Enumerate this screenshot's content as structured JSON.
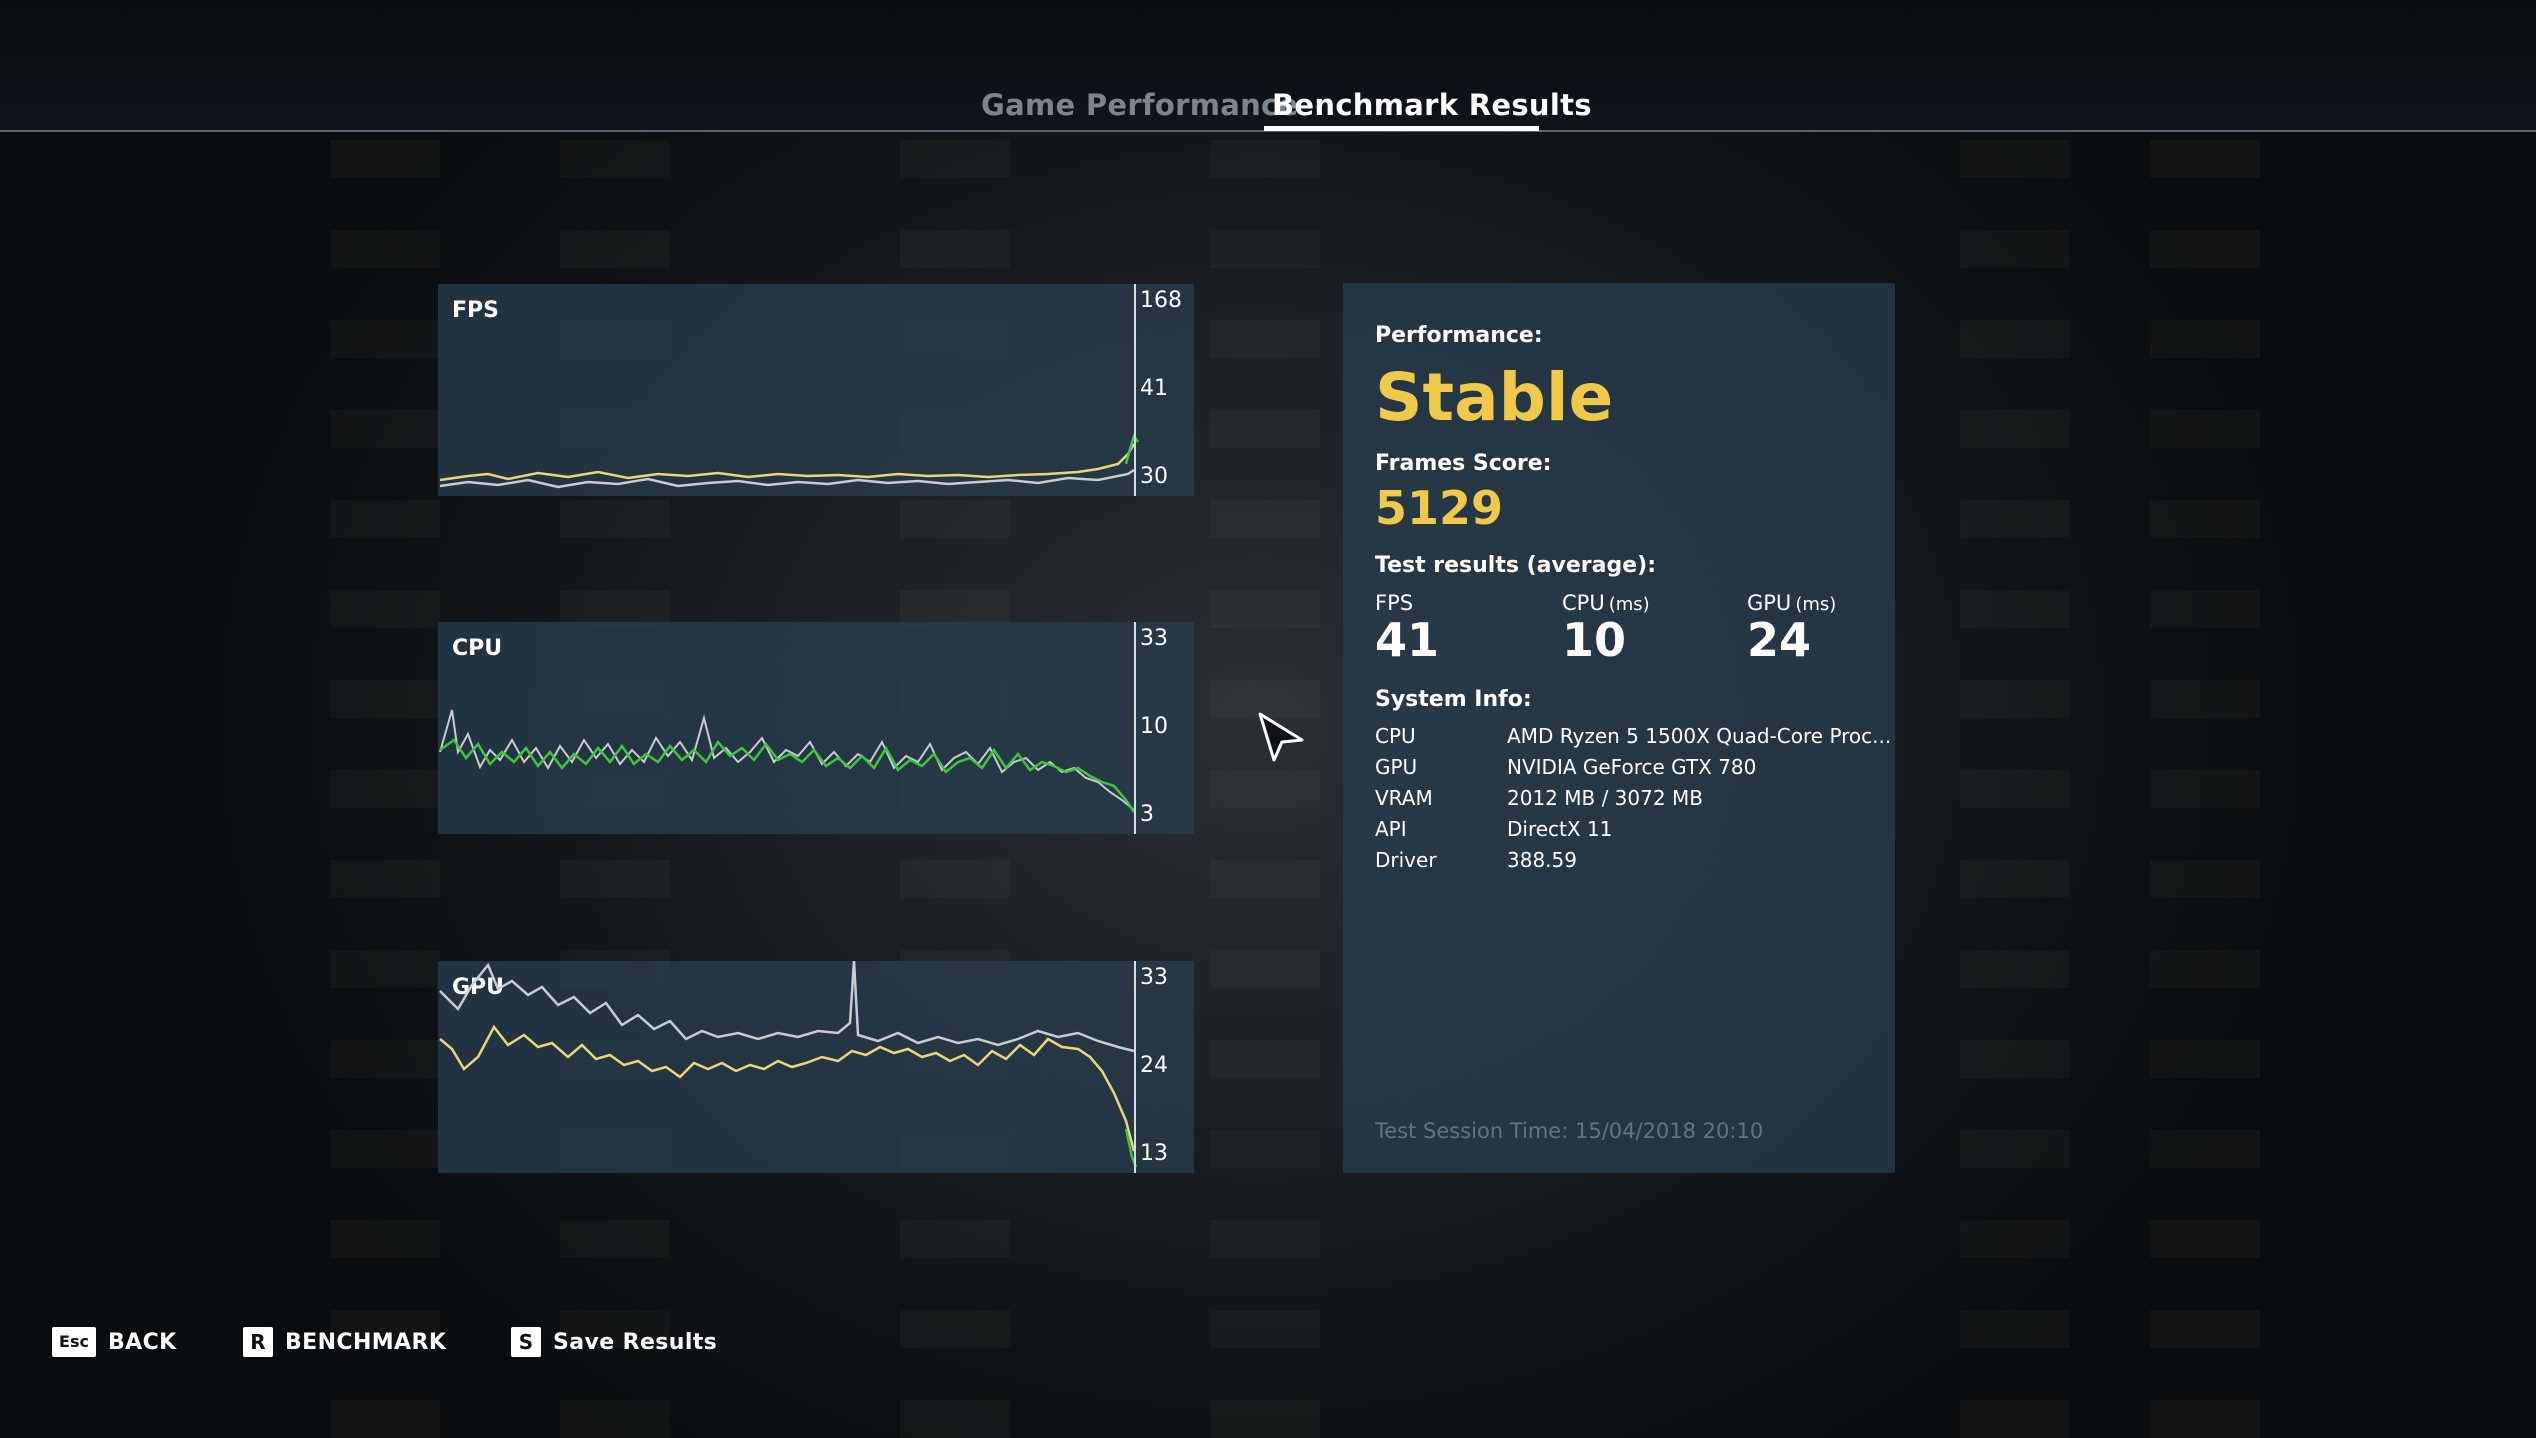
{
  "tabs": [
    {
      "label": "Game Performance",
      "active": false
    },
    {
      "label": "Benchmark Results",
      "active": true
    }
  ],
  "graphs": {
    "fps": {
      "title": "FPS",
      "axis_labels": [
        "168",
        "41",
        "30"
      ]
    },
    "cpu": {
      "title": "CPU",
      "axis_labels": [
        "33",
        "10",
        "3"
      ]
    },
    "gpu": {
      "title": "GPU",
      "axis_labels": [
        "33",
        "24",
        "13"
      ]
    }
  },
  "results": {
    "performance_label": "Performance:",
    "performance_value": "Stable",
    "frames_score_label": "Frames Score:",
    "frames_score_value": "5129",
    "test_results_label": "Test results (average):",
    "averages": [
      {
        "label": "FPS",
        "unit": "",
        "value": "41"
      },
      {
        "label": "CPU",
        "unit": "(ms)",
        "value": "10"
      },
      {
        "label": "GPU",
        "unit": "(ms)",
        "value": "24"
      }
    ],
    "system_info_label": "System Info:",
    "system_info": [
      {
        "key": "CPU",
        "value": "AMD Ryzen 5 1500X Quad-Core Proc..."
      },
      {
        "key": "GPU",
        "value": "NVIDIA GeForce GTX 780"
      },
      {
        "key": "VRAM",
        "value": "2012 MB / 3072 MB"
      },
      {
        "key": "API",
        "value": "DirectX 11"
      },
      {
        "key": "Driver",
        "value": "388.59"
      }
    ],
    "session_time": "Test Session Time: 15/04/2018 20:10"
  },
  "footer": [
    {
      "key": "Esc",
      "label": "BACK"
    },
    {
      "key": "R",
      "label": "BENCHMARK"
    },
    {
      "key": "S",
      "label": "Save Results"
    }
  ],
  "colors": {
    "accent_yellow": "#f1c94a",
    "series_yellow": "#e8d77a",
    "series_gray": "#c8ccd0",
    "series_green": "#3fc43f",
    "panel": "#283c4e"
  }
}
